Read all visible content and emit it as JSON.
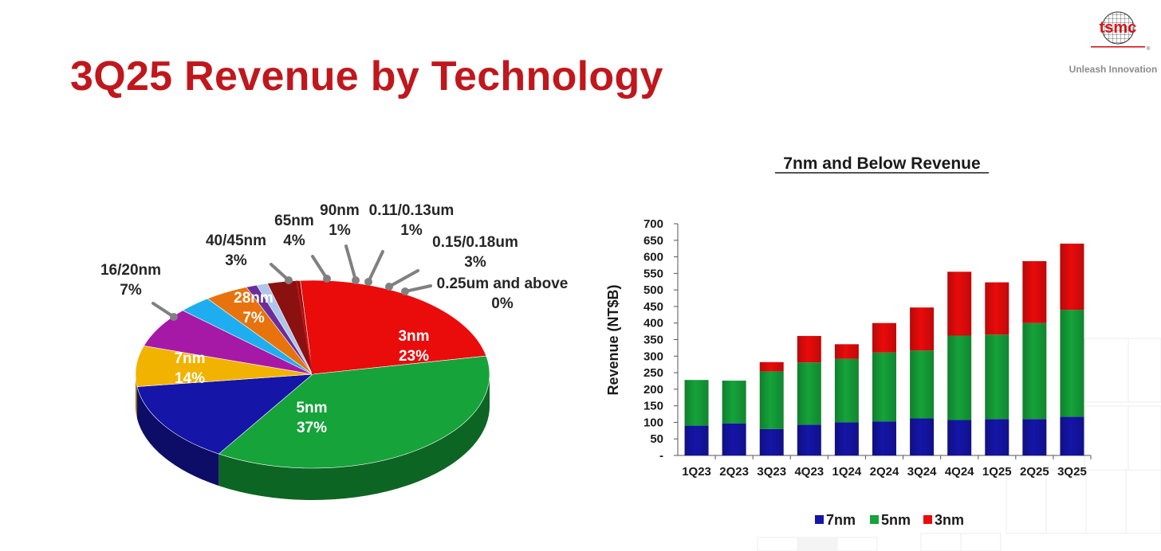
{
  "slide": {
    "title": "3Q25 Revenue by Technology",
    "logo_text": "tsmc",
    "logo_tagline": "Unleash Innovation",
    "colors": {
      "title": "#c0171c",
      "brand": "#d7141a"
    }
  },
  "chart_data": [
    {
      "type": "pie",
      "style": "3d",
      "title": "",
      "slices": [
        {
          "name": "3nm",
          "pct_label": "23%",
          "value": 23,
          "color": "#ea0b0b"
        },
        {
          "name": "5nm",
          "pct_label": "37%",
          "value": 37,
          "color": "#15a33a"
        },
        {
          "name": "7nm",
          "pct_label": "14%",
          "value": 14,
          "color": "#1515a8"
        },
        {
          "name": "16/20nm",
          "pct_label": "7%",
          "value": 7,
          "color": "#f2b200"
        },
        {
          "name": "28nm",
          "pct_label": "7%",
          "value": 7,
          "color": "#a619a6"
        },
        {
          "name": "40/45nm",
          "pct_label": "3%",
          "value": 3,
          "color": "#1eaef0"
        },
        {
          "name": "65nm",
          "pct_label": "4%",
          "value": 4,
          "color": "#e8720c"
        },
        {
          "name": "90nm",
          "pct_label": "1%",
          "value": 1,
          "color": "#6a2e9c"
        },
        {
          "name": "0.11/0.13um",
          "pct_label": "1%",
          "value": 1,
          "color": "#aec6ea"
        },
        {
          "name": "0.15/0.18um",
          "pct_label": "3%",
          "value": 3,
          "color": "#8b1010"
        },
        {
          "name": "0.25um and above",
          "pct_label": "0%",
          "value": 0,
          "color": "#c81414"
        }
      ]
    },
    {
      "type": "bar",
      "stacked": true,
      "title": "7nm and Below Revenue",
      "ylabel": "Revenue (NT$B)",
      "xlabel": "",
      "ylim": [
        0,
        700
      ],
      "yticks": [
        "-",
        "50",
        "100",
        "150",
        "200",
        "250",
        "300",
        "350",
        "400",
        "450",
        "500",
        "550",
        "600",
        "650",
        "700"
      ],
      "categories": [
        "1Q23",
        "2Q23",
        "3Q23",
        "4Q23",
        "1Q24",
        "2Q24",
        "3Q24",
        "4Q24",
        "1Q25",
        "2Q25",
        "3Q25"
      ],
      "series": [
        {
          "name": "7nm",
          "color": "#1515a8",
          "values": [
            90,
            97,
            80,
            93,
            100,
            103,
            112,
            107,
            110,
            110,
            117
          ]
        },
        {
          "name": "5nm",
          "color": "#15a33a",
          "values": [
            138,
            129,
            174,
            188,
            192,
            208,
            205,
            255,
            255,
            290,
            323
          ]
        },
        {
          "name": "3nm",
          "color": "#ea0b0b",
          "values": [
            0,
            0,
            28,
            80,
            44,
            89,
            130,
            193,
            158,
            187,
            200
          ]
        }
      ],
      "legend_position": "bottom",
      "grid": false
    }
  ]
}
